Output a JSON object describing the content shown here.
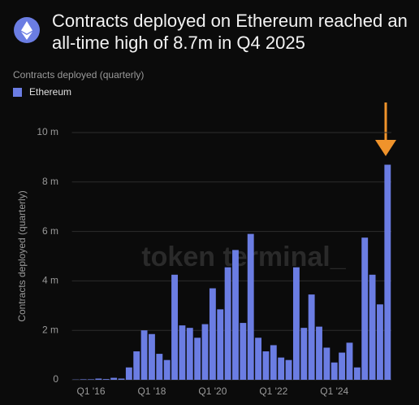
{
  "chart_data": {
    "type": "bar",
    "title": "Contracts deployed on Ethereum reached an all-time high of 8.7m in Q4 2025",
    "legend_title": "Contracts deployed (quarterly)",
    "y_label": "Contracts deployed (quarterly)",
    "watermark": "token terminal_",
    "categories": [
      null,
      null,
      "Q1 '16",
      null,
      null,
      null,
      null,
      null,
      null,
      null,
      "Q1 '18",
      null,
      null,
      null,
      null,
      null,
      null,
      null,
      "Q1 '20",
      null,
      null,
      null,
      null,
      null,
      null,
      null,
      "Q1 '22",
      null,
      null,
      null,
      null,
      null,
      null,
      null,
      "Q1 '24",
      null,
      null,
      null,
      null,
      null,
      null,
      null
    ],
    "series": [
      {
        "name": "Ethereum",
        "color": "#6b7de3",
        "values": [
          0.01,
          0.02,
          0.02,
          0.05,
          0.03,
          0.08,
          0.05,
          0.5,
          1.15,
          2.0,
          1.85,
          1.05,
          0.8,
          4.25,
          2.2,
          2.1,
          1.7,
          2.25,
          3.7,
          2.85,
          4.55,
          5.25,
          2.3,
          5.9,
          1.7,
          1.15,
          1.4,
          0.9,
          0.8,
          4.55,
          2.1,
          3.45,
          2.15,
          1.3,
          0.7,
          1.1,
          1.5,
          0.5,
          5.75,
          4.25,
          3.05,
          8.7
        ]
      }
    ],
    "ylim": [
      0,
      10
    ],
    "yticks": [
      0,
      {
        "value": 2,
        "label": "2 m"
      },
      {
        "value": 4,
        "label": "4 m"
      },
      {
        "value": 6,
        "label": "6 m"
      },
      {
        "value": 8,
        "label": "8 m"
      },
      {
        "value": 10,
        "label": "10 m"
      }
    ],
    "grid": true
  }
}
